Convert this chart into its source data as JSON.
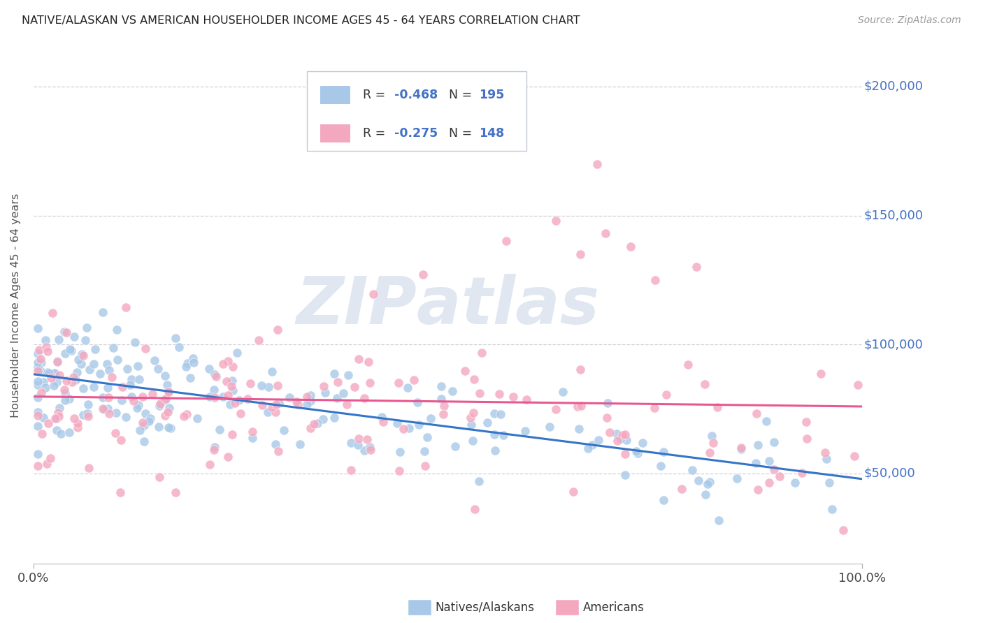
{
  "title": "NATIVE/ALASKAN VS AMERICAN HOUSEHOLDER INCOME AGES 45 - 64 YEARS CORRELATION CHART",
  "source": "Source: ZipAtlas.com",
  "ylabel": "Householder Income Ages 45 - 64 years",
  "xmin": 0.0,
  "xmax": 1.0,
  "ymin": 15000,
  "ymax": 215000,
  "blue_R": -0.468,
  "blue_N": 195,
  "pink_R": -0.275,
  "pink_N": 148,
  "blue_color": "#a8c8e8",
  "pink_color": "#f4a8c0",
  "blue_line_color": "#3575c8",
  "pink_line_color": "#e85890",
  "yticks": [
    50000,
    100000,
    150000,
    200000
  ],
  "ytick_labels": [
    "$50,000",
    "$100,000",
    "$150,000",
    "$200,000"
  ],
  "xtick_labels": [
    "0.0%",
    "100.0%"
  ],
  "background_color": "#ffffff",
  "grid_color": "#d0d0d8",
  "title_color": "#222222",
  "right_tick_color": "#4472c4",
  "R_value_color": "#4472c4",
  "N_value_color": "#4472c4",
  "label_color": "#333333",
  "source_color": "#999999",
  "watermark_color": "#ccd8e8"
}
